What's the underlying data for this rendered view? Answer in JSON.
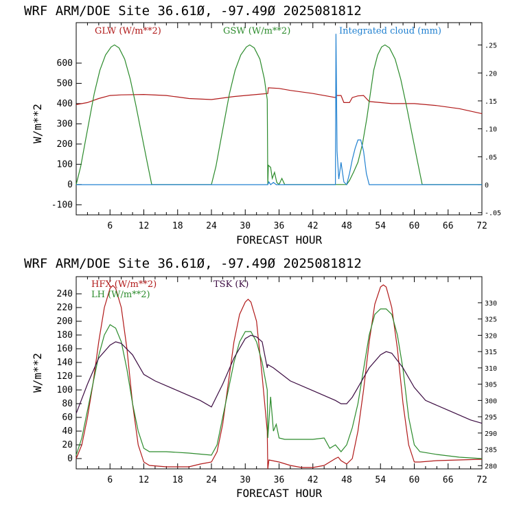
{
  "chart_data": [
    {
      "type": "line",
      "title": "WRF  ARM/DOE Site  36.61Ø, -97.49Ø  2025081812",
      "xlabel": "FORECAST HOUR",
      "ylabel": "W/m**2",
      "xlim": [
        0,
        72
      ],
      "ylim": [
        -150,
        800
      ],
      "xticks": [
        "6",
        "12",
        "18",
        "24",
        "30",
        "36",
        "42",
        "48",
        "54",
        "60",
        "66",
        "72"
      ],
      "yticks": [
        "-100",
        "0",
        "100",
        "200",
        "300",
        "400",
        "500",
        "600"
      ],
      "y2lim": [
        -0.054,
        0.29
      ],
      "y2ticks": [
        "-.05",
        "0",
        ".05",
        ".10",
        ".15",
        ".20",
        ".25"
      ],
      "series": [
        {
          "name": "GLW (W/m**2)",
          "color": "#b01818",
          "axis": "left",
          "points": [
            [
              0,
              395
            ],
            [
              2,
              405
            ],
            [
              4,
              425
            ],
            [
              6,
              440
            ],
            [
              8,
              443
            ],
            [
              12,
              445
            ],
            [
              16,
              440
            ],
            [
              20,
              425
            ],
            [
              24,
              420
            ],
            [
              28,
              435
            ],
            [
              32,
              445
            ],
            [
              34,
              450
            ],
            [
              34.1,
              478
            ],
            [
              36,
              475
            ],
            [
              38,
              465
            ],
            [
              42,
              450
            ],
            [
              46,
              430
            ],
            [
              46.1,
              440
            ],
            [
              47,
              440
            ],
            [
              47.5,
              405
            ],
            [
              48.5,
              405
            ],
            [
              49,
              430
            ],
            [
              50,
              438
            ],
            [
              51,
              440
            ],
            [
              52,
              410
            ],
            [
              56,
              400
            ],
            [
              60,
              400
            ],
            [
              64,
              390
            ],
            [
              68,
              375
            ],
            [
              72,
              350
            ]
          ]
        },
        {
          "name": "GSW (W/m**2)",
          "color": "#2a8a2a",
          "axis": "left",
          "points": [
            [
              0,
              0
            ],
            [
              0.8,
              90
            ],
            [
              1.6,
              210
            ],
            [
              2.4,
              330
            ],
            [
              3.2,
              450
            ],
            [
              4.2,
              565
            ],
            [
              5.2,
              640
            ],
            [
              6.2,
              680
            ],
            [
              6.8,
              690
            ],
            [
              7.6,
              675
            ],
            [
              8.6,
              620
            ],
            [
              9.6,
              520
            ],
            [
              10.6,
              390
            ],
            [
              11.6,
              250
            ],
            [
              12.6,
              110
            ],
            [
              13.4,
              0
            ],
            [
              24,
              0
            ],
            [
              24.8,
              90
            ],
            [
              25.6,
              210
            ],
            [
              26.4,
              330
            ],
            [
              27.2,
              450
            ],
            [
              28.2,
              565
            ],
            [
              29.2,
              640
            ],
            [
              30.2,
              680
            ],
            [
              30.8,
              690
            ],
            [
              31.6,
              675
            ],
            [
              32.6,
              620
            ],
            [
              33.4,
              520
            ],
            [
              33.9,
              420
            ],
            [
              34.0,
              0
            ],
            [
              34.1,
              95
            ],
            [
              34.5,
              85
            ],
            [
              34.8,
              30
            ],
            [
              35.2,
              60
            ],
            [
              35.6,
              10
            ],
            [
              36,
              0
            ],
            [
              36.5,
              30
            ],
            [
              37,
              0
            ],
            [
              48,
              0
            ],
            [
              48.5,
              20
            ],
            [
              49.2,
              60
            ],
            [
              50,
              110
            ],
            [
              50.8,
              200
            ],
            [
              51.6,
              330
            ],
            [
              52.2,
              450
            ],
            [
              52.8,
              565
            ],
            [
              53.5,
              640
            ],
            [
              54.2,
              680
            ],
            [
              54.8,
              690
            ],
            [
              55.6,
              675
            ],
            [
              56.6,
              620
            ],
            [
              57.6,
              520
            ],
            [
              58.6,
              390
            ],
            [
              59.6,
              250
            ],
            [
              60.6,
              110
            ],
            [
              61.4,
              0
            ],
            [
              72,
              0
            ]
          ]
        },
        {
          "name": "Integrated cloud (mm)",
          "color": "#2080d0",
          "axis": "right",
          "points": [
            [
              0,
              0
            ],
            [
              34,
              0
            ],
            [
              34.2,
              0.005
            ],
            [
              34.5,
              0
            ],
            [
              35,
              0.004
            ],
            [
              35.5,
              0
            ],
            [
              46,
              0
            ],
            [
              46.1,
              0.27
            ],
            [
              46.3,
              0.06
            ],
            [
              46.6,
              0.01
            ],
            [
              47,
              0.04
            ],
            [
              47.5,
              0.005
            ],
            [
              48,
              0
            ],
            [
              48.5,
              0.02
            ],
            [
              49,
              0.045
            ],
            [
              49.5,
              0.065
            ],
            [
              50,
              0.08
            ],
            [
              50.5,
              0.08
            ],
            [
              51,
              0.06
            ],
            [
              51.5,
              0.02
            ],
            [
              52,
              0
            ],
            [
              72,
              0
            ]
          ]
        }
      ],
      "legend": [
        "GLW (W/m**2)",
        "GSW (W/m**2)",
        "Integrated cloud (mm)"
      ]
    },
    {
      "type": "line",
      "title": "WRF  ARM/DOE Site  36.61Ø, -97.49Ø  2025081812",
      "xlabel": "FORECAST HOUR",
      "ylabel": "W/m**2",
      "xlim": [
        0,
        72
      ],
      "ylim": [
        -15,
        265
      ],
      "xticks": [
        "6",
        "12",
        "18",
        "24",
        "30",
        "36",
        "42",
        "48",
        "54",
        "60",
        "66",
        "72"
      ],
      "yticks": [
        "0",
        "20",
        "40",
        "60",
        "80",
        "100",
        "120",
        "140",
        "160",
        "180",
        "200",
        "220",
        "240"
      ],
      "y2lim": [
        279,
        338
      ],
      "y2ticks": [
        "280",
        "285",
        "290",
        "295",
        "300",
        "305",
        "310",
        "315",
        "320",
        "325",
        "330"
      ],
      "series": [
        {
          "name": "HFX (W/m**2)",
          "color": "#b01818",
          "axis": "left",
          "points": [
            [
              0,
              0
            ],
            [
              1,
              20
            ],
            [
              2,
              60
            ],
            [
              3,
              110
            ],
            [
              4,
              170
            ],
            [
              5,
              220
            ],
            [
              6,
              248
            ],
            [
              6.5,
              252
            ],
            [
              7,
              248
            ],
            [
              8,
              220
            ],
            [
              9,
              160
            ],
            [
              10,
              80
            ],
            [
              11,
              20
            ],
            [
              12,
              -5
            ],
            [
              13,
              -10
            ],
            [
              16,
              -12
            ],
            [
              18,
              -12
            ],
            [
              20,
              -12
            ],
            [
              22,
              -8
            ],
            [
              24,
              -5
            ],
            [
              25,
              10
            ],
            [
              26,
              50
            ],
            [
              27,
              110
            ],
            [
              28,
              170
            ],
            [
              29,
              210
            ],
            [
              30,
              228
            ],
            [
              30.5,
              232
            ],
            [
              31,
              228
            ],
            [
              32,
              200
            ],
            [
              33,
              120
            ],
            [
              33.9,
              40
            ],
            [
              34.0,
              -15
            ],
            [
              34.2,
              -2
            ],
            [
              36,
              -5
            ],
            [
              38,
              -10
            ],
            [
              40,
              -13
            ],
            [
              42,
              -13
            ],
            [
              44,
              -10
            ],
            [
              46,
              0
            ],
            [
              46.5,
              2
            ],
            [
              47,
              -3
            ],
            [
              48,
              -8
            ],
            [
              49,
              0
            ],
            [
              50,
              40
            ],
            [
              51,
              100
            ],
            [
              52,
              170
            ],
            [
              53,
              225
            ],
            [
              54,
              250
            ],
            [
              54.5,
              253
            ],
            [
              55,
              250
            ],
            [
              56,
              220
            ],
            [
              57,
              160
            ],
            [
              58,
              80
            ],
            [
              59,
              20
            ],
            [
              60,
              -5
            ],
            [
              61,
              -5
            ],
            [
              64,
              -3
            ],
            [
              68,
              -2
            ],
            [
              72,
              -1
            ]
          ]
        },
        {
          "name": "LH (W/m**2)",
          "color": "#2a8a2a",
          "axis": "left",
          "points": [
            [
              0,
              5
            ],
            [
              1,
              30
            ],
            [
              2,
              70
            ],
            [
              3,
              110
            ],
            [
              4,
              150
            ],
            [
              5,
              180
            ],
            [
              6,
              195
            ],
            [
              7,
              190
            ],
            [
              8,
              170
            ],
            [
              9,
              130
            ],
            [
              10,
              80
            ],
            [
              11,
              40
            ],
            [
              12,
              15
            ],
            [
              13,
              10
            ],
            [
              16,
              10
            ],
            [
              20,
              8
            ],
            [
              24,
              5
            ],
            [
              25,
              20
            ],
            [
              26,
              60
            ],
            [
              27,
              100
            ],
            [
              28,
              140
            ],
            [
              29,
              170
            ],
            [
              30,
              185
            ],
            [
              31,
              185
            ],
            [
              32,
              170
            ],
            [
              33,
              140
            ],
            [
              33.9,
              100
            ],
            [
              34,
              30
            ],
            [
              34.5,
              90
            ],
            [
              35,
              40
            ],
            [
              35.5,
              50
            ],
            [
              36,
              30
            ],
            [
              37,
              28
            ],
            [
              40,
              28
            ],
            [
              42,
              28
            ],
            [
              44,
              30
            ],
            [
              45,
              15
            ],
            [
              46,
              20
            ],
            [
              47,
              10
            ],
            [
              48,
              20
            ],
            [
              49,
              45
            ],
            [
              50,
              80
            ],
            [
              51,
              130
            ],
            [
              52,
              180
            ],
            [
              53,
              210
            ],
            [
              54,
              218
            ],
            [
              55,
              218
            ],
            [
              56,
              210
            ],
            [
              57,
              180
            ],
            [
              58,
              130
            ],
            [
              59,
              60
            ],
            [
              60,
              20
            ],
            [
              61,
              10
            ],
            [
              64,
              6
            ],
            [
              68,
              2
            ],
            [
              72,
              0
            ]
          ]
        },
        {
          "name": "TSK (K)",
          "color": "#3a0a40",
          "axis": "right",
          "points": [
            [
              0,
              296
            ],
            [
              2,
              305
            ],
            [
              4,
              313
            ],
            [
              6,
              317
            ],
            [
              7,
              318
            ],
            [
              8,
              317.5
            ],
            [
              10,
              314
            ],
            [
              12,
              308
            ],
            [
              14,
              306
            ],
            [
              18,
              303
            ],
            [
              22,
              300
            ],
            [
              24,
              298
            ],
            [
              26,
              305
            ],
            [
              28,
              313
            ],
            [
              30,
              319
            ],
            [
              31,
              320
            ],
            [
              32,
              319.5
            ],
            [
              33,
              318
            ],
            [
              33.9,
              310
            ],
            [
              34,
              311
            ],
            [
              35,
              310
            ],
            [
              38,
              306
            ],
            [
              42,
              303
            ],
            [
              46,
              300
            ],
            [
              47,
              299
            ],
            [
              48,
              299
            ],
            [
              49,
              301
            ],
            [
              50,
              304
            ],
            [
              52,
              310
            ],
            [
              54,
              314
            ],
            [
              55,
              315
            ],
            [
              56,
              314.5
            ],
            [
              58,
              310
            ],
            [
              60,
              304
            ],
            [
              62,
              300
            ],
            [
              66,
              297
            ],
            [
              70,
              294
            ],
            [
              72,
              293
            ]
          ]
        }
      ],
      "legend": [
        "HFX (W/m**2)",
        "LH (W/m**2)",
        "TSK (K)"
      ]
    }
  ]
}
